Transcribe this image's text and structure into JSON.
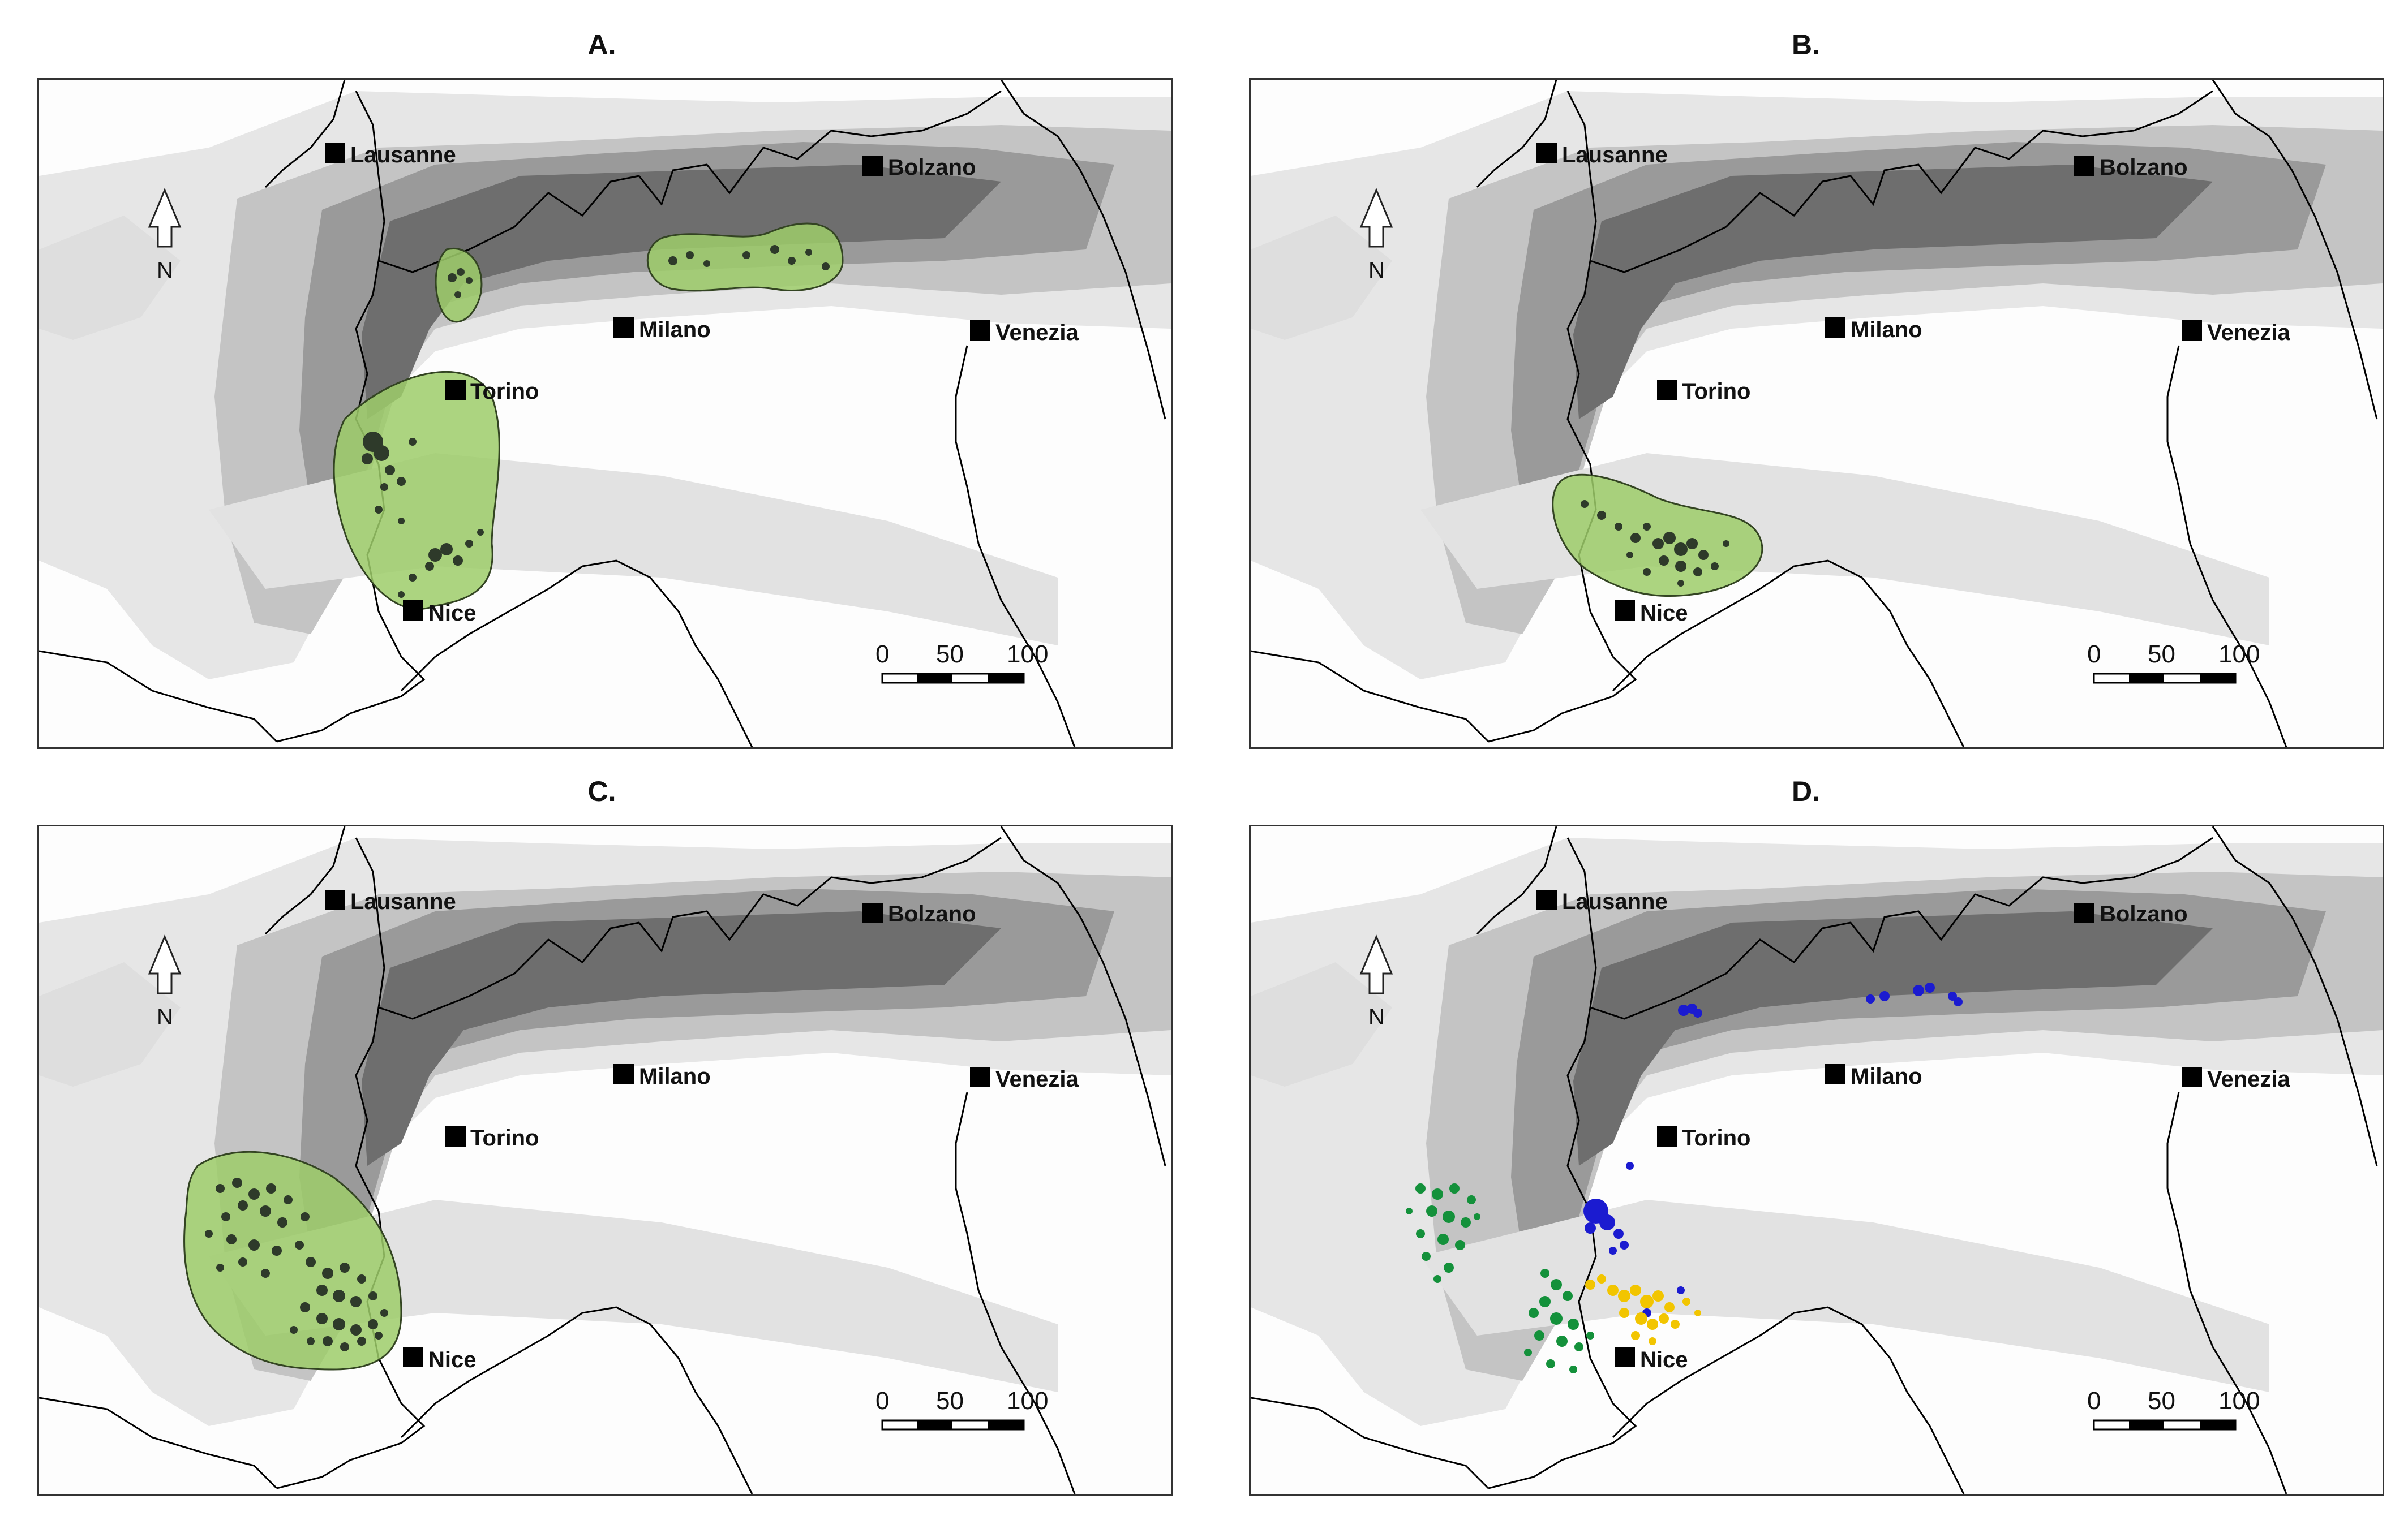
{
  "figure": {
    "panels": [
      {
        "id": "A",
        "title": "A."
      },
      {
        "id": "B",
        "title": "B."
      },
      {
        "id": "C",
        "title": "C."
      },
      {
        "id": "D",
        "title": "D."
      }
    ]
  },
  "cities": [
    {
      "key": "lausanne",
      "name": "Lausanne"
    },
    {
      "key": "bolzano",
      "name": "Bolzano"
    },
    {
      "key": "milano",
      "name": "Milano"
    },
    {
      "key": "venezia",
      "name": "Venezia"
    },
    {
      "key": "torino",
      "name": "Torino"
    },
    {
      "key": "nice",
      "name": "Nice"
    }
  ],
  "north_arrow": {
    "label": "N"
  },
  "scale_bar": {
    "ticks": [
      "0",
      "50",
      "100"
    ]
  },
  "colors": {
    "range_fill": "#9dcc6a",
    "occurrence_dark": "#2e3a2a",
    "cluster_green": "#14913b",
    "cluster_blue": "#1b1bd0",
    "cluster_yellow": "#f2c500"
  }
}
